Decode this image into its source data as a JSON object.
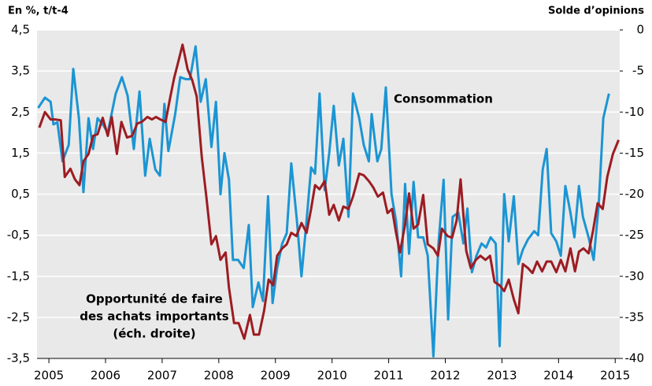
{
  "chart_data": {
    "type": "line",
    "y_label": "En %, t/t-4",
    "y2_label": "Solde d’opinions",
    "annotations": [
      "Consommation",
      "Opportunité de faire",
      "des achats importants",
      "(éch. droite)"
    ],
    "xlim": [
      2004.79,
      2015.08
    ],
    "xticks": [
      2005,
      2006,
      2007,
      2008,
      2009,
      2010,
      2011,
      2012,
      2013,
      2014,
      2015
    ],
    "ylim": [
      -3.5,
      4.5
    ],
    "yticks": [
      {
        "value": -3.5,
        "label": "-3,5"
      },
      {
        "value": -2.5,
        "label": "-2,5"
      },
      {
        "value": -1.5,
        "label": "-1,5"
      },
      {
        "value": -0.5,
        "label": "-0,5"
      },
      {
        "value": 0.5,
        "label": "0,5"
      },
      {
        "value": 1.5,
        "label": "1,5"
      },
      {
        "value": 2.5,
        "label": "2,5"
      },
      {
        "value": 3.5,
        "label": "3,5"
      },
      {
        "value": 4.5,
        "label": "4,5"
      }
    ],
    "y2lim": [
      -40,
      0
    ],
    "y2ticks": [
      -40,
      -35,
      -30,
      -25,
      -20,
      -15,
      -10,
      -5,
      0
    ],
    "grid": true,
    "series": [
      {
        "name": "Consommation",
        "color": "#1b95d3",
        "x": [
          2004.81,
          2004.93,
          2005.03,
          2005.08,
          2005.15,
          2005.24,
          2005.35,
          2005.43,
          2005.53,
          2005.61,
          2005.7,
          2005.78,
          2005.86,
          2005.95,
          2006.04,
          2006.18,
          2006.29,
          2006.39,
          2006.5,
          2006.6,
          2006.7,
          2006.78,
          2006.88,
          2006.96,
          2007.04,
          2007.11,
          2007.23,
          2007.32,
          2007.42,
          2007.49,
          2007.59,
          2007.68,
          2007.77,
          2007.87,
          2007.95,
          2008.03,
          2008.1,
          2008.18,
          2008.25,
          2008.34,
          2008.44,
          2008.53,
          2008.6,
          2008.7,
          2008.78,
          2008.87,
          2008.95,
          2009.03,
          2009.12,
          2009.2,
          2009.28,
          2009.38,
          2009.46,
          2009.55,
          2009.63,
          2009.7,
          2009.78,
          2009.87,
          2009.95,
          2010.03,
          2010.12,
          2010.2,
          2010.29,
          2010.37,
          2010.48,
          2010.56,
          2010.65,
          2010.7,
          2010.8,
          2010.87,
          2010.95,
          2011.05,
          2011.13,
          2011.22,
          2011.29,
          2011.36,
          2011.44,
          2011.52,
          2011.61,
          2011.69,
          2011.79,
          2011.88,
          2011.97,
          2012.05,
          2012.13,
          2012.23,
          2012.32,
          2012.39,
          2012.47,
          2012.55,
          2012.64,
          2012.72,
          2012.8,
          2012.89,
          2012.96,
          2013.04,
          2013.12,
          2013.21,
          2013.29,
          2013.37,
          2013.46,
          2013.57,
          2013.64,
          2013.72,
          2013.79,
          2013.87,
          2013.96,
          2014.04,
          2014.12,
          2014.21,
          2014.28,
          2014.36,
          2014.43,
          2014.53,
          2014.62,
          2014.71,
          2014.79,
          2014.89
        ],
        "values": [
          2.6,
          2.85,
          2.75,
          2.2,
          2.25,
          1.3,
          1.7,
          3.55,
          2.35,
          0.55,
          2.35,
          1.6,
          2.35,
          2.2,
          2.0,
          2.95,
          3.35,
          2.9,
          1.6,
          3.0,
          0.95,
          1.85,
          1.1,
          0.95,
          2.7,
          1.55,
          2.45,
          3.35,
          3.3,
          3.3,
          4.1,
          2.75,
          3.3,
          1.65,
          2.75,
          0.5,
          1.5,
          0.85,
          -1.1,
          -1.1,
          -1.3,
          -0.25,
          -2.25,
          -1.65,
          -2.1,
          0.45,
          -2.15,
          -1.3,
          -0.7,
          -0.45,
          1.25,
          -0.15,
          -1.5,
          -0.15,
          1.15,
          1.0,
          2.95,
          0.6,
          1.5,
          2.65,
          1.2,
          1.85,
          -0.05,
          2.95,
          2.35,
          1.7,
          1.3,
          2.45,
          1.3,
          1.6,
          3.1,
          0.5,
          -0.15,
          -1.5,
          0.75,
          -0.95,
          0.8,
          -0.55,
          -0.55,
          -1.0,
          -3.45,
          -0.7,
          0.85,
          -2.55,
          -0.05,
          0.05,
          -0.7,
          0.15,
          -1.4,
          -1.0,
          -0.7,
          -0.8,
          -0.55,
          -0.7,
          -3.2,
          0.5,
          -0.65,
          0.45,
          -1.2,
          -0.85,
          -0.6,
          -0.4,
          -0.5,
          1.1,
          1.6,
          -0.45,
          -0.65,
          -1.0,
          0.7,
          0.05,
          -0.55,
          0.7,
          -0.05,
          -0.55,
          -1.1,
          0.25,
          2.35,
          2.95
        ]
      },
      {
        "name": "Opportunité de faire des achats importants (éch. droite)",
        "color": "#9c1c22",
        "axis": "y2",
        "x": [
          2004.83,
          2004.93,
          2005.03,
          2005.11,
          2005.21,
          2005.28,
          2005.38,
          2005.46,
          2005.54,
          2005.61,
          2005.7,
          2005.78,
          2005.86,
          2005.95,
          2006.04,
          2006.11,
          2006.2,
          2006.28,
          2006.38,
          2006.47,
          2006.56,
          2006.64,
          2006.74,
          2006.82,
          2006.89,
          2006.97,
          2007.06,
          2007.14,
          2007.21,
          2007.28,
          2007.36,
          2007.45,
          2007.53,
          2007.61,
          2007.7,
          2007.78,
          2007.87,
          2007.95,
          2008.03,
          2008.12,
          2008.18,
          2008.27,
          2008.35,
          2008.45,
          2008.55,
          2008.62,
          2008.71,
          2008.8,
          2008.88,
          2008.96,
          2009.03,
          2009.12,
          2009.2,
          2009.28,
          2009.37,
          2009.46,
          2009.55,
          2009.63,
          2009.7,
          2009.78,
          2009.87,
          2009.95,
          2010.03,
          2010.12,
          2010.2,
          2010.29,
          2010.37,
          2010.48,
          2010.56,
          2010.65,
          2010.73,
          2010.81,
          2010.9,
          2010.98,
          2011.06,
          2011.13,
          2011.2,
          2011.29,
          2011.36,
          2011.44,
          2011.52,
          2011.61,
          2011.69,
          2011.79,
          2011.87,
          2011.94,
          2012.04,
          2012.12,
          2012.2,
          2012.27,
          2012.37,
          2012.45,
          2012.54,
          2012.62,
          2012.71,
          2012.79,
          2012.87,
          2012.96,
          2013.04,
          2013.12,
          2013.21,
          2013.29,
          2013.37,
          2013.46,
          2013.54,
          2013.62,
          2013.71,
          2013.79,
          2013.87,
          2013.96,
          2014.04,
          2014.12,
          2014.21,
          2014.29,
          2014.36,
          2014.44,
          2014.53,
          2014.61,
          2014.69,
          2014.78,
          2014.86,
          2014.96,
          2015.06
        ],
        "values": [
          -11.9,
          -10.0,
          -10.9,
          -10.9,
          -11.0,
          -17.9,
          -16.9,
          -18.2,
          -18.9,
          -16.0,
          -15.1,
          -12.9,
          -12.7,
          -10.7,
          -12.9,
          -10.6,
          -15.1,
          -11.2,
          -13.1,
          -12.9,
          -11.4,
          -11.2,
          -10.6,
          -10.9,
          -10.6,
          -10.9,
          -11.2,
          -8.3,
          -5.9,
          -4.0,
          -1.8,
          -4.8,
          -6.1,
          -8.1,
          -15.5,
          -20.3,
          -26.1,
          -25.1,
          -28.0,
          -27.1,
          -31.4,
          -35.7,
          -35.7,
          -37.6,
          -34.7,
          -37.1,
          -37.1,
          -34.2,
          -30.4,
          -31.1,
          -27.5,
          -26.6,
          -26.1,
          -24.7,
          -25.1,
          -23.5,
          -24.7,
          -21.8,
          -18.9,
          -19.4,
          -18.4,
          -22.5,
          -21.3,
          -23.2,
          -21.5,
          -21.8,
          -20.3,
          -17.5,
          -17.7,
          -18.4,
          -19.2,
          -20.3,
          -19.8,
          -22.3,
          -21.8,
          -24.7,
          -27.1,
          -23.7,
          -19.9,
          -24.2,
          -23.7,
          -20.1,
          -26.1,
          -26.6,
          -27.5,
          -24.2,
          -25.1,
          -25.3,
          -23.2,
          -18.2,
          -26.9,
          -29.0,
          -28.0,
          -27.5,
          -28.0,
          -27.5,
          -30.7,
          -31.1,
          -31.8,
          -30.4,
          -32.8,
          -34.5,
          -28.5,
          -29.0,
          -29.6,
          -28.2,
          -29.4,
          -28.2,
          -28.2,
          -29.5,
          -28.0,
          -29.4,
          -26.6,
          -29.4,
          -27.0,
          -26.6,
          -27.2,
          -24.4,
          -21.1,
          -21.8,
          -17.9,
          -15.1,
          -13.4
        ]
      }
    ]
  }
}
